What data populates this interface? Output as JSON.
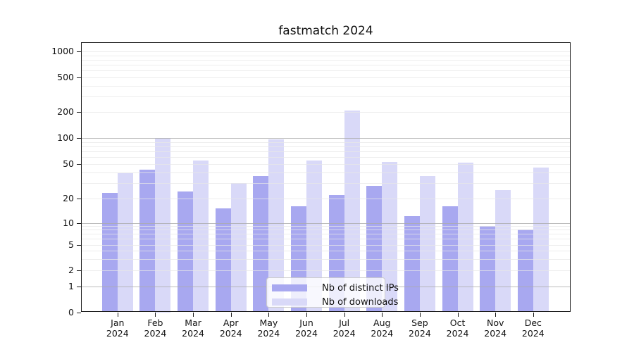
{
  "chart_data": {
    "type": "bar",
    "title": "fastmatch 2024",
    "categories": [
      "Jan 2024",
      "Feb 2024",
      "Mar 2024",
      "Apr 2024",
      "May 2024",
      "Jun 2024",
      "Jul 2024",
      "Aug 2024",
      "Sep 2024",
      "Oct 2024",
      "Nov 2024",
      "Dec 2024"
    ],
    "series": [
      {
        "name": "Nb of distinct IPs",
        "color": "#a8a8f0",
        "values": [
          23,
          43,
          24,
          15,
          36,
          16,
          22,
          28,
          12,
          16,
          9,
          8
        ]
      },
      {
        "name": "Nb of downloads",
        "color": "#d9d9f8",
        "values": [
          39,
          100,
          55,
          30,
          96,
          55,
          205,
          53,
          36,
          52,
          25,
          45
        ]
      }
    ],
    "yscale": "asinh (log-like above 1, linear near 0)",
    "yticks": [
      0,
      1,
      2,
      5,
      10,
      20,
      50,
      100,
      200,
      500,
      1000
    ],
    "ylim": [
      0,
      1200
    ],
    "xlabel": "",
    "ylabel": "",
    "grid": true,
    "legend_position": "lower center"
  },
  "colors": {
    "major_grid": "#aaaaaa",
    "minor_grid": "#e7e7e7",
    "axis": "#1a1a1a",
    "background": "#ffffff"
  }
}
